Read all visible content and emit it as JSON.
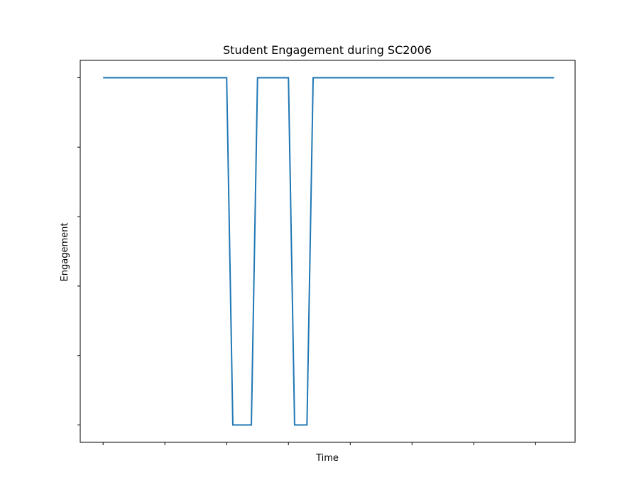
{
  "chart_data": {
    "type": "line",
    "title": "Student Engagement during SC2006",
    "xlabel": "Time",
    "ylabel": "Engagement",
    "x": [
      0,
      20,
      21,
      24,
      25,
      30,
      31,
      33,
      34,
      73
    ],
    "series": [
      {
        "values": [
          1,
          1,
          0,
          0,
          1,
          1,
          0,
          0,
          1,
          1
        ]
      }
    ],
    "xlim": [
      -3.7,
      76.4
    ],
    "ylim": [
      -0.05,
      1.05
    ],
    "x_ticks": [
      0,
      10,
      20,
      30,
      40,
      50,
      60,
      70
    ],
    "y_ticks": [
      0,
      0.2,
      0.4,
      0.6,
      0.8,
      1.0
    ],
    "tick_labels_visible": false,
    "grid": false,
    "legend": "none",
    "colors": {
      "line": "#1f77b4",
      "axes": "#000000",
      "background": "#ffffff"
    }
  }
}
